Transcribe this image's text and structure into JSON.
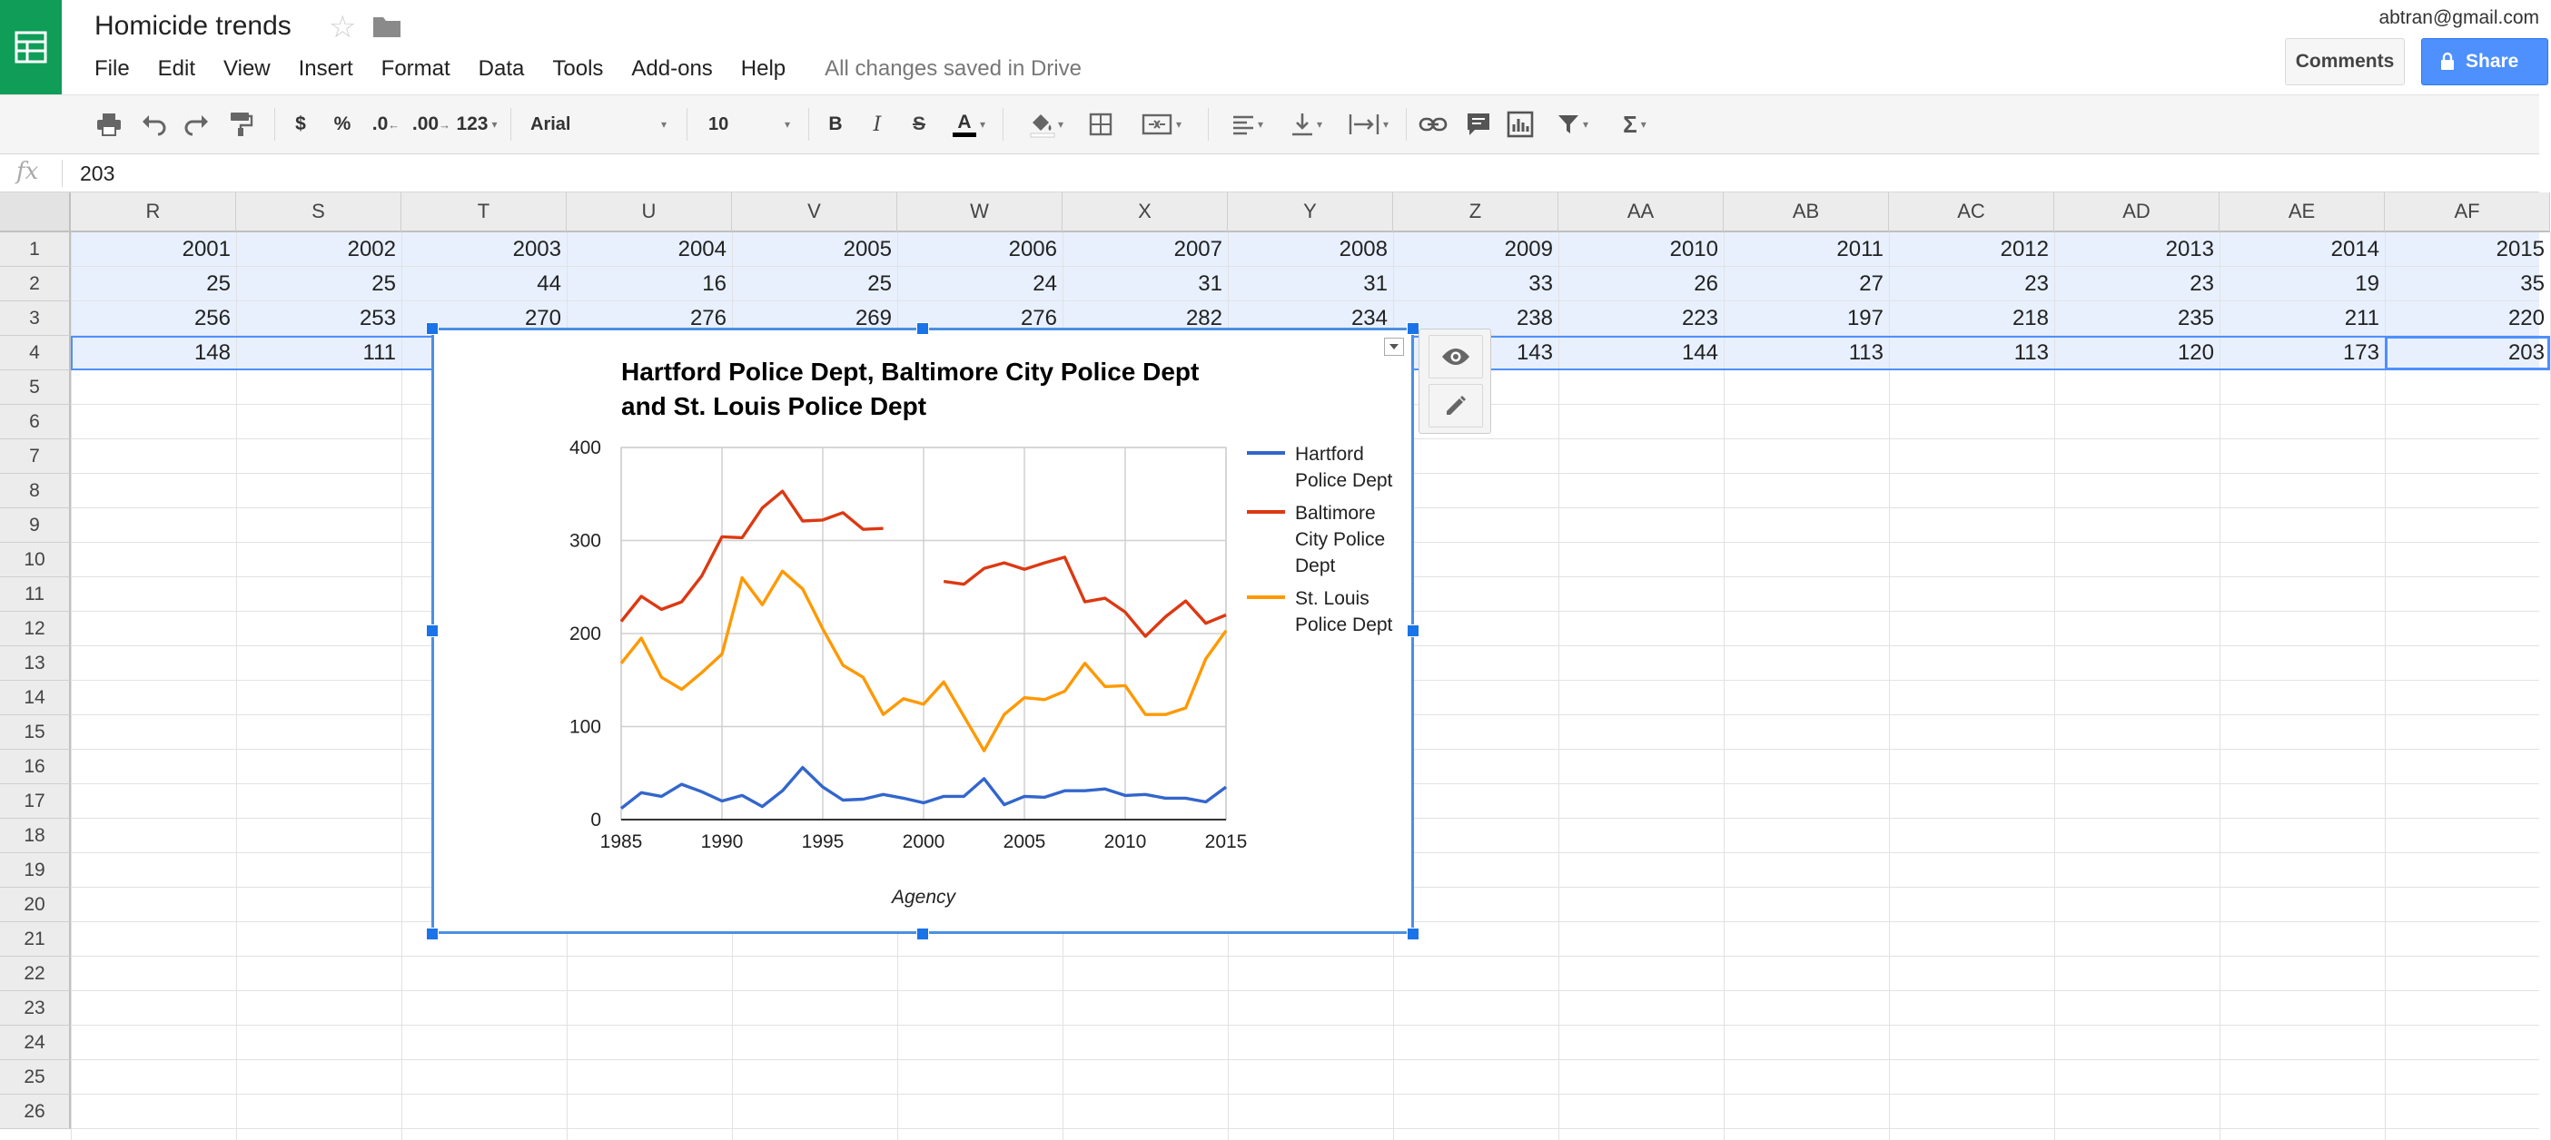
{
  "header": {
    "doc_title": "Homicide trends",
    "user_email": "abtran@gmail.com",
    "comments_label": "Comments",
    "share_label": "Share",
    "save_status": "All changes saved in Drive",
    "menus": [
      "File",
      "Edit",
      "View",
      "Insert",
      "Format",
      "Data",
      "Tools",
      "Add-ons",
      "Help"
    ]
  },
  "toolbar": {
    "currency_label": "$",
    "percent_label": "%",
    "decrease_decimal_label": ".0",
    "increase_decimal_label": ".00",
    "more_formats_label": "123",
    "font_name": "Arial",
    "font_size": "10",
    "bold_label": "B",
    "italic_label": "I",
    "strike_label": "S",
    "text_color_label": "A",
    "functions_label": "Σ",
    "icons": [
      "print-icon",
      "undo-icon",
      "redo-icon",
      "paint-format-icon",
      "fill-color-icon",
      "borders-icon",
      "merge-cells-icon",
      "align-icon",
      "valign-icon",
      "text-wrap-icon",
      "link-icon",
      "comment-icon",
      "chart-icon",
      "filter-icon",
      "functions-icon"
    ]
  },
  "formula_bar": {
    "fx_label": "fx",
    "value": "203"
  },
  "grid": {
    "columns": [
      "R",
      "S",
      "T",
      "U",
      "V",
      "W",
      "X",
      "Y",
      "Z",
      "AA",
      "AB",
      "AC",
      "AD",
      "AE",
      "AF"
    ],
    "rows": [
      "1",
      "2",
      "3",
      "4",
      "5",
      "6",
      "7",
      "8",
      "9",
      "10",
      "11",
      "12",
      "13",
      "14",
      "15",
      "16",
      "17",
      "18",
      "19",
      "20",
      "21",
      "22",
      "23",
      "24",
      "25",
      "26"
    ],
    "cells": [
      [
        "2001",
        "2002",
        "2003",
        "2004",
        "2005",
        "2006",
        "2007",
        "2008",
        "2009",
        "2010",
        "2011",
        "2012",
        "2013",
        "2014",
        "2015"
      ],
      [
        "25",
        "25",
        "44",
        "16",
        "25",
        "24",
        "31",
        "31",
        "33",
        "26",
        "27",
        "23",
        "23",
        "19",
        "35"
      ],
      [
        "256",
        "253",
        "270",
        "276",
        "269",
        "276",
        "282",
        "234",
        "238",
        "223",
        "197",
        "218",
        "235",
        "211",
        "220"
      ],
      [
        "148",
        "111",
        "",
        "",
        "",
        "",
        "",
        "",
        "143",
        "144",
        "113",
        "113",
        "120",
        "173",
        "203"
      ]
    ]
  },
  "chart_data": {
    "type": "line",
    "title": "Hartford Police Dept, Baltimore City Police Dept and St. Louis Police Dept",
    "title_lines": [
      "Hartford Police Dept, Baltimore City Police Dept",
      "and St. Louis Police Dept"
    ],
    "xlabel": "Agency",
    "ylabel": "",
    "xlim": [
      1985,
      2015
    ],
    "ylim": [
      0,
      400
    ],
    "xticks": [
      "1985",
      "1990",
      "1995",
      "2000",
      "2005",
      "2010",
      "2015"
    ],
    "yticks": [
      "0",
      "100",
      "200",
      "300",
      "400"
    ],
    "grid": true,
    "legend_position": "right",
    "x": [
      1985,
      1986,
      1987,
      1988,
      1989,
      1990,
      1991,
      1992,
      1993,
      1994,
      1995,
      1996,
      1997,
      1998,
      1999,
      2000,
      2001,
      2002,
      2003,
      2004,
      2005,
      2006,
      2007,
      2008,
      2009,
      2010,
      2011,
      2012,
      2013,
      2014,
      2015
    ],
    "series": [
      {
        "name": "Hartford Police Dept",
        "legend_lines": [
          "Hartford",
          "Police Dept"
        ],
        "color": "#3366cc",
        "values": [
          12,
          29,
          25,
          38,
          30,
          20,
          26,
          14,
          31,
          56,
          35,
          21,
          22,
          27,
          23,
          18,
          25,
          25,
          44,
          16,
          25,
          24,
          31,
          31,
          33,
          26,
          27,
          23,
          23,
          19,
          35
        ]
      },
      {
        "name": "Baltimore City Police Dept",
        "legend_lines": [
          "Baltimore",
          "City Police",
          "Dept"
        ],
        "color": "#dc3912",
        "values": [
          213,
          240,
          226,
          234,
          262,
          304,
          303,
          335,
          353,
          321,
          322,
          330,
          312,
          313,
          null,
          null,
          256,
          253,
          270,
          276,
          269,
          276,
          282,
          234,
          238,
          223,
          197,
          218,
          235,
          211,
          220
        ]
      },
      {
        "name": "St. Louis Police Dept",
        "legend_lines": [
          "St. Louis",
          "Police Dept"
        ],
        "color": "#ff9900",
        "values": [
          168,
          195,
          153,
          140,
          158,
          178,
          260,
          231,
          267,
          248,
          205,
          166,
          153,
          113,
          130,
          124,
          148,
          111,
          74,
          113,
          131,
          129,
          138,
          168,
          143,
          144,
          113,
          113,
          120,
          173,
          203
        ]
      }
    ]
  }
}
